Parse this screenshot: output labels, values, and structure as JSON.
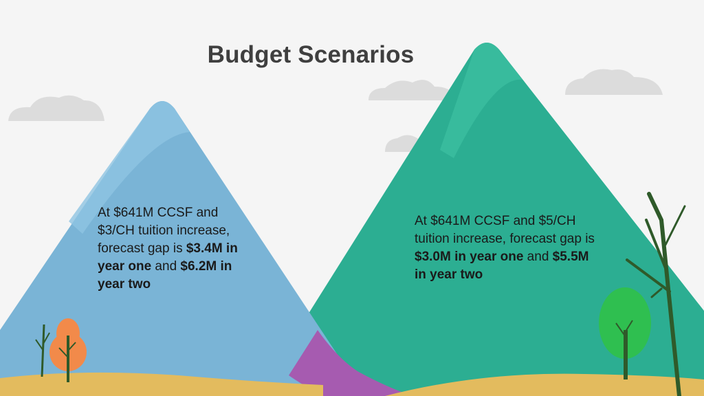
{
  "title": "Budget Scenarios",
  "scenario_one": {
    "intro": "At $641M CCSF and $3/CH tuition increase, forecast gap is ",
    "year_one_amount": "$3.4M in year one",
    "connector": " and ",
    "year_two_amount": "$6.2M in year two"
  },
  "scenario_two": {
    "intro": "At $641M CCSF and $5/CH tuition increase, forecast gap is ",
    "year_one_amount": "$3.0M in year one",
    "connector": " and ",
    "year_two_amount": "$5.5M in year two"
  },
  "colors": {
    "background": "#f5f5f5",
    "left_mountain": "#7ab4d6",
    "right_mountain": "#2cae92",
    "ground": "#e3bb5e",
    "path": "#a65bb0",
    "tree_orange": "#f28a4a",
    "tree_green": "#2fbf50"
  }
}
